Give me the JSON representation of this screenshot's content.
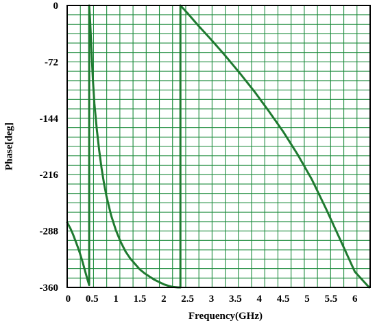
{
  "chart_data": {
    "type": "line",
    "title": "",
    "xlabel": "Frequency(GHz)",
    "ylabel": "Phase[deg]",
    "xlim": [
      -0.02,
      6.32
    ],
    "ylim": [
      -360,
      0
    ],
    "grid": true,
    "legend": "none",
    "colors": {
      "grid": "#1a8a3a",
      "line": "#1f7a30",
      "axis": "#000000"
    },
    "x_ticks": [
      {
        "value": 0,
        "label": "0"
      },
      {
        "value": 0.5,
        "label": "0.5"
      },
      {
        "value": 1,
        "label": "1"
      },
      {
        "value": 1.5,
        "label": "1.5"
      },
      {
        "value": 2,
        "label": "2"
      },
      {
        "value": 2.5,
        "label": "2.5"
      },
      {
        "value": 3,
        "label": "3"
      },
      {
        "value": 3.5,
        "label": "3.5"
      },
      {
        "value": 4,
        "label": "4"
      },
      {
        "value": 4.5,
        "label": "4.5"
      },
      {
        "value": 5,
        "label": "5"
      },
      {
        "value": 5.5,
        "label": "5.5"
      },
      {
        "value": 6,
        "label": "6"
      }
    ],
    "y_ticks": [
      {
        "value": 0,
        "label": "0"
      },
      {
        "value": -72,
        "label": "-72"
      },
      {
        "value": -144,
        "label": "-144"
      },
      {
        "value": -216,
        "label": "-216"
      },
      {
        "value": -288,
        "label": "-288"
      },
      {
        "value": -360,
        "label": "-360"
      }
    ],
    "series": [
      {
        "x": [
          -0.02,
          0.05,
          0.1,
          0.15,
          0.2,
          0.25,
          0.3,
          0.35,
          0.4,
          0.44,
          0.44,
          0.46,
          0.48,
          0.5,
          0.52,
          0.55,
          0.6,
          0.65,
          0.7,
          0.75,
          0.8,
          0.9,
          1.0,
          1.1,
          1.2,
          1.3,
          1.4,
          1.5,
          1.6,
          1.7,
          1.8,
          1.9,
          2.0,
          2.1,
          2.2,
          2.3,
          2.35,
          2.35,
          2.5,
          2.7,
          3.0,
          3.3,
          3.6,
          3.9,
          4.2,
          4.5,
          4.8,
          5.1,
          5.4,
          5.7,
          6.0,
          6.3
        ],
        "y": [
          -277,
          -285,
          -292,
          -300,
          -308,
          -317,
          -327,
          -338,
          -349,
          -357,
          0,
          -20,
          -46,
          -73,
          -96,
          -125,
          -158,
          -185,
          -208,
          -227,
          -243,
          -268,
          -287,
          -302,
          -314,
          -323,
          -330,
          -337,
          -342,
          -346,
          -350,
          -353,
          -356,
          -358,
          -359.5,
          -360,
          -360,
          0,
          -10,
          -24,
          -44,
          -65,
          -87,
          -110,
          -135,
          -161,
          -190,
          -222,
          -260,
          -300,
          -340,
          -375
        ]
      }
    ]
  }
}
